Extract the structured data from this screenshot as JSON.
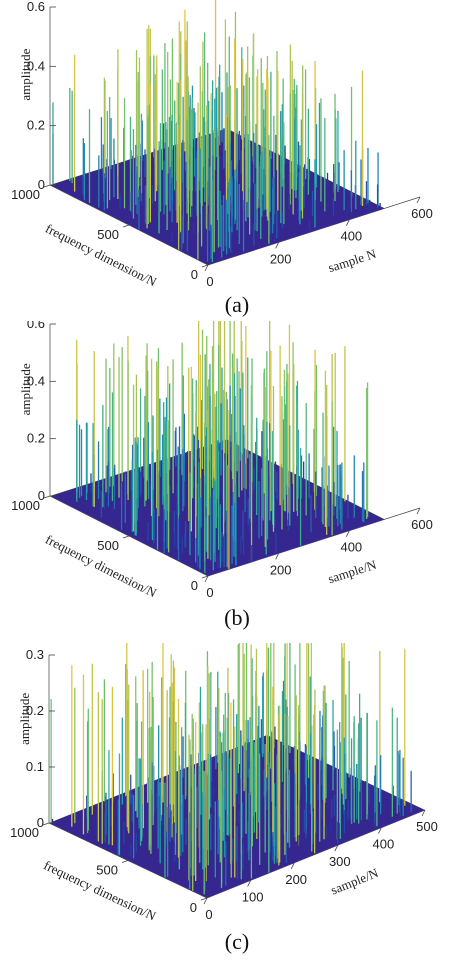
{
  "chart_data": [
    {
      "type": "surface3d",
      "caption": "(a)",
      "xlabel": "sample N",
      "ylabel": "frequency dimension/N",
      "zlabel": "amplitude",
      "x_ticks": [
        "0",
        "200",
        "400",
        "600"
      ],
      "y_ticks": [
        "0",
        "500",
        "1000"
      ],
      "z_ticks": [
        "0",
        "0.2",
        "0.4",
        "0.6"
      ],
      "xlim": [
        0,
        600
      ],
      "ylim": [
        0,
        1000
      ],
      "zlim": [
        0,
        0.6
      ],
      "x_data_extent": 500,
      "colormap": [
        "#2b1a8a",
        "#2563b8",
        "#1fa0a8",
        "#6cc070",
        "#f3c63a"
      ],
      "seed": 11,
      "spikes": 520,
      "peak": 0.48
    },
    {
      "type": "surface3d",
      "caption": "(b)",
      "xlabel": "sample/N",
      "ylabel": "frequency dimension/N",
      "zlabel": "amplitude",
      "x_ticks": [
        "0",
        "200",
        "400",
        "600"
      ],
      "y_ticks": [
        "0",
        "500",
        "1000"
      ],
      "z_ticks": [
        "0",
        "0.2",
        "0.4",
        "0.6"
      ],
      "xlim": [
        0,
        600
      ],
      "ylim": [
        0,
        1000
      ],
      "zlim": [
        0,
        0.6
      ],
      "x_data_extent": 500,
      "colormap": [
        "#2b1a8a",
        "#2563b8",
        "#1fa0a8",
        "#6cc070",
        "#f3c63a"
      ],
      "seed": 29,
      "spikes": 480,
      "peak": 0.58
    },
    {
      "type": "surface3d",
      "caption": "(c)",
      "xlabel": "sample/N",
      "ylabel": "frequency dimension/N",
      "zlabel": "amplitude",
      "x_ticks": [
        "0",
        "100",
        "200",
        "300",
        "400",
        "500"
      ],
      "y_ticks": [
        "0",
        "500",
        "1000"
      ],
      "z_ticks": [
        "0",
        "0.1",
        "0.2",
        "0.3"
      ],
      "xlim": [
        0,
        500
      ],
      "ylim": [
        0,
        1000
      ],
      "zlim": [
        0,
        0.3
      ],
      "x_data_extent": 500,
      "colormap": [
        "#2b1a8a",
        "#2563b8",
        "#1fa0a8",
        "#6cc070",
        "#f3c63a"
      ],
      "seed": 47,
      "spikes": 560,
      "peak": 0.29
    }
  ]
}
